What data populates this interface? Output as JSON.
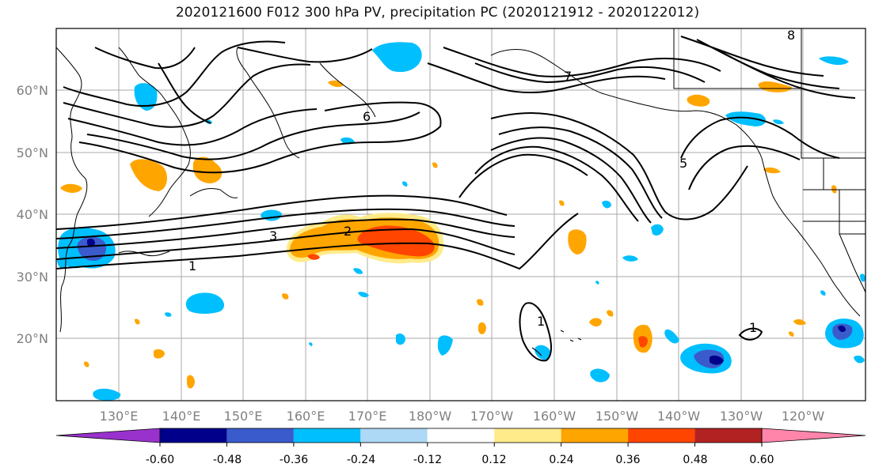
{
  "title": "2020121600 F012 300 hPa PV, precipitation PC (2020121912 - 2020122012)",
  "map": {
    "lat_labels": [
      "60°N",
      "50°N",
      "40°N",
      "30°N",
      "20°N"
    ],
    "lon_labels": [
      "130°E",
      "140°E",
      "150°E",
      "160°E",
      "170°E",
      "180°W",
      "170°W",
      "160°W",
      "150°W",
      "140°W",
      "130°W",
      "120°W"
    ],
    "contour_labels": [
      "1",
      "2",
      "3",
      "5",
      "6",
      "7",
      "8",
      "1",
      "1"
    ]
  },
  "colorbar": {
    "colors": [
      "#9932cc",
      "#00008b",
      "#3a5bcb",
      "#00bfff",
      "#add8f6",
      "#ffffff",
      "#ffeb8a",
      "#ffa500",
      "#ff4500",
      "#b22222",
      "#ff85ab"
    ],
    "tick_labels": [
      "-0.60",
      "-0.48",
      "-0.36",
      "-0.24",
      "-0.12",
      "0.12",
      "0.24",
      "0.36",
      "0.48",
      "0.60"
    ],
    "extend": "both"
  }
}
